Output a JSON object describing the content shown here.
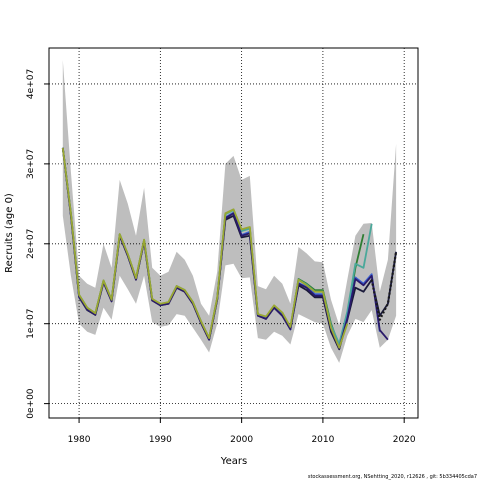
{
  "chart_data": {
    "type": "line",
    "xlabel": "Years",
    "ylabel": "Recruits (age 0)",
    "xlim": [
      1976.3,
      2021.7
    ],
    "ylim": [
      -1800000,
      44500000
    ],
    "grid": true,
    "x_ticks": [
      1980,
      1990,
      2000,
      2010,
      2020
    ],
    "x_tick_labels": [
      "1980",
      "1990",
      "2000",
      "2010",
      "2020"
    ],
    "y_ticks": [
      0,
      10000000,
      20000000,
      30000000,
      40000000
    ],
    "y_tick_labels": [
      "0e+00",
      "1e+07",
      "2e+07",
      "3e+07",
      "4e+07"
    ],
    "confidence_band": {
      "x": [
        1978,
        1979,
        1980,
        1981,
        1982,
        1983,
        1984,
        1985,
        1986,
        1987,
        1988,
        1989,
        1990,
        1991,
        1992,
        1993,
        1994,
        1995,
        1996,
        1997,
        1998,
        1999,
        2000,
        2001,
        2002,
        2003,
        2004,
        2005,
        2006,
        2007,
        2008,
        2009,
        2010,
        2011,
        2012,
        2013,
        2014,
        2015,
        2016,
        2017,
        2018,
        2019
      ],
      "lower": [
        23500000,
        16000000,
        10000000,
        9000000,
        8600000,
        12000000,
        10500000,
        16000000,
        14300000,
        12500000,
        16000000,
        10200000,
        9600000,
        9800000,
        11200000,
        11000000,
        9500000,
        8000000,
        6400000,
        10000000,
        17300000,
        17500000,
        15700000,
        15800000,
        8200000,
        8000000,
        9000000,
        8500000,
        7400000,
        11200000,
        10700000,
        10200000,
        10000000,
        7000000,
        5100000,
        8500000,
        10600000,
        10200000,
        11700000,
        7000000,
        8000000,
        11000000
      ],
      "upper": [
        43000000,
        29000000,
        16000000,
        15000000,
        14500000,
        20000000,
        17000000,
        28000000,
        25000000,
        21000000,
        27000000,
        17000000,
        16000000,
        16500000,
        19000000,
        18000000,
        16000000,
        12500000,
        11000000,
        16500000,
        30000000,
        31000000,
        28000000,
        28500000,
        14700000,
        14300000,
        16000000,
        15000000,
        12500000,
        19600000,
        18800000,
        17800000,
        17700000,
        13000000,
        9800000,
        15500000,
        21000000,
        22500000,
        22600000,
        14000000,
        18000000,
        32500000
      ]
    },
    "series": [
      {
        "color": "#1a1a3a",
        "x": [
          1978,
          1979,
          1980,
          1981,
          1982,
          1983,
          1984,
          1985,
          1986,
          1987,
          1988,
          1989,
          1990,
          1991,
          1992,
          1993,
          1994,
          1995,
          1996,
          1997,
          1998,
          1999,
          2000,
          2001,
          2002,
          2003,
          2004,
          2005,
          2006,
          2007,
          2008,
          2009,
          2010,
          2011,
          2012,
          2013,
          2014,
          2015,
          2016,
          2017,
          2018,
          2019
        ],
        "y": [
          32000000,
          23500000,
          13300000,
          11700000,
          11100000,
          15200000,
          12800000,
          21000000,
          18500000,
          15500000,
          20300000,
          12900000,
          12300000,
          12500000,
          14500000,
          14000000,
          12500000,
          10100000,
          8000000,
          13000000,
          23000000,
          23500000,
          20800000,
          21000000,
          11000000,
          10600000,
          12000000,
          11000000,
          9300000,
          14800000,
          14200000,
          13300000,
          13300000,
          9000000,
          6800000,
          10500000,
          14500000,
          14000000,
          15500000,
          11000000,
          12500000,
          19000000
        ]
      },
      {
        "color": "#2e7d32",
        "x": [
          1978,
          1979,
          1980,
          1981,
          1982,
          1983,
          1984,
          1985,
          1986,
          1987,
          1988,
          1989,
          1990,
          1991,
          1992,
          1993,
          1994,
          1995,
          1996,
          1997,
          1998,
          1999,
          2000,
          2001,
          2002,
          2003,
          2004,
          2005,
          2006,
          2007,
          2008,
          2009,
          2010,
          2011,
          2012,
          2013,
          2014,
          2015
        ],
        "y": [
          32000000,
          23800000,
          13600000,
          12000000,
          11300000,
          15400000,
          13000000,
          21200000,
          18700000,
          15700000,
          20500000,
          13100000,
          12400000,
          12700000,
          14700000,
          14200000,
          12700000,
          10300000,
          8200000,
          13200000,
          23800000,
          24300000,
          21700000,
          22000000,
          11100000,
          10800000,
          12200000,
          11300000,
          9500000,
          15600000,
          15000000,
          14200000,
          14200000,
          10000000,
          7200000,
          11000000,
          17000000,
          21200000
        ]
      },
      {
        "color": "#4aa89a",
        "x": [
          1978,
          1979,
          1980,
          1981,
          1982,
          1983,
          1984,
          1985,
          1986,
          1987,
          1988,
          1989,
          1990,
          1991,
          1992,
          1993,
          1994,
          1995,
          1996,
          1997,
          1998,
          1999,
          2000,
          2001,
          2002,
          2003,
          2004,
          2005,
          2006,
          2007,
          2008,
          2009,
          2010,
          2011,
          2012,
          2013,
          2014,
          2015,
          2016
        ],
        "y": [
          32000000,
          23800000,
          13500000,
          11900000,
          11200000,
          15300000,
          12900000,
          21100000,
          18600000,
          15600000,
          20400000,
          13000000,
          12400000,
          12600000,
          14600000,
          14100000,
          12600000,
          10200000,
          8100000,
          13100000,
          23700000,
          24200000,
          21600000,
          21900000,
          11100000,
          10700000,
          12100000,
          11200000,
          9400000,
          15500000,
          14900000,
          14000000,
          14000000,
          9800000,
          7500000,
          11500000,
          17500000,
          17000000,
          22500000
        ]
      },
      {
        "color": "#3a5fd0",
        "x": [
          1978,
          1979,
          1980,
          1981,
          1982,
          1983,
          1984,
          1985,
          1986,
          1987,
          1988,
          1989,
          1990,
          1991,
          1992,
          1993,
          1994,
          1995,
          1996,
          1997,
          1998,
          1999,
          2000,
          2001,
          2002,
          2003,
          2004,
          2005,
          2006,
          2007,
          2008,
          2009,
          2010,
          2011,
          2012,
          2013,
          2014,
          2015,
          2016,
          2017
        ],
        "y": [
          32000000,
          23700000,
          13400000,
          11800000,
          11200000,
          15300000,
          12900000,
          21100000,
          18600000,
          15600000,
          20400000,
          13000000,
          12300000,
          12600000,
          14600000,
          14100000,
          12600000,
          10200000,
          8100000,
          13100000,
          23300000,
          23900000,
          21100000,
          21500000,
          11000000,
          10700000,
          12000000,
          11100000,
          9300000,
          15100000,
          14600000,
          13700000,
          13700000,
          9500000,
          7000000,
          10800000,
          15800000,
          15000000,
          16200000,
          9000000
        ]
      },
      {
        "color": "#2a1a6a",
        "x": [
          1978,
          1979,
          1980,
          1981,
          1982,
          1983,
          1984,
          1985,
          1986,
          1987,
          1988,
          1989,
          1990,
          1991,
          1992,
          1993,
          1994,
          1995,
          1996,
          1997,
          1998,
          1999,
          2000,
          2001,
          2002,
          2003,
          2004,
          2005,
          2006,
          2007,
          2008,
          2009,
          2010,
          2011,
          2012,
          2013,
          2014,
          2015,
          2016,
          2017,
          2018
        ],
        "y": [
          32000000,
          23600000,
          13400000,
          11800000,
          11100000,
          15200000,
          12800000,
          21000000,
          18500000,
          15500000,
          20300000,
          12900000,
          12300000,
          12500000,
          14500000,
          14000000,
          12500000,
          10100000,
          8000000,
          13000000,
          23200000,
          23800000,
          21000000,
          21300000,
          11000000,
          10600000,
          12000000,
          11000000,
          9300000,
          15000000,
          14500000,
          13500000,
          13500000,
          9300000,
          6900000,
          10600000,
          15600000,
          14800000,
          16000000,
          9200000,
          8000000
        ]
      },
      {
        "color": "#9aa832",
        "x": [
          1978,
          1979,
          1980,
          1981,
          1982,
          1983,
          1984,
          1985,
          1986,
          1987,
          1988,
          1989,
          1990,
          1991,
          1992,
          1993,
          1994,
          1995,
          1996,
          1997,
          1998,
          1999,
          2000,
          2001,
          2002,
          2003,
          2004,
          2005,
          2006,
          2007,
          2008,
          2009,
          2010,
          2011,
          2012,
          2013
        ],
        "y": [
          32000000,
          23800000,
          13600000,
          12000000,
          11300000,
          15400000,
          13000000,
          21200000,
          18700000,
          15700000,
          20500000,
          13100000,
          12500000,
          12700000,
          14700000,
          14200000,
          12700000,
          10300000,
          8200000,
          13200000,
          23800000,
          24300000,
          21800000,
          22100000,
          11200000,
          10900000,
          12300000,
          11400000,
          9600000,
          15500000,
          14800000,
          14000000,
          14000000,
          9500000,
          7000000,
          10000000
        ]
      },
      {
        "color": "#1a1a1a",
        "dashed": true,
        "x": [
          2016,
          2017,
          2018,
          2019
        ],
        "y": [
          15500000,
          10500000,
          12500000,
          19000000
        ]
      }
    ]
  },
  "footnote": "stockassessment.org, NSehtting_2020, r12626 , git: 5b334405cda7"
}
